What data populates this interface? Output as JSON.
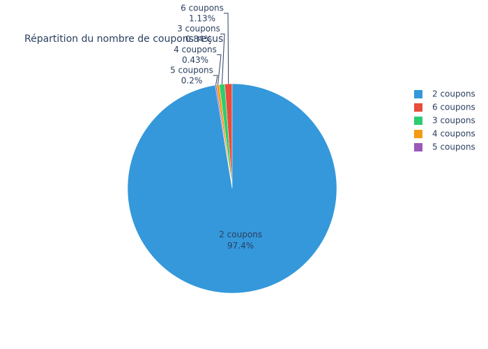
{
  "chart_data": {
    "type": "pie",
    "title": "Répartition du nombre de coupons reçus",
    "categories": [
      "2 coupons",
      "6 coupons",
      "3 coupons",
      "4 coupons",
      "5 coupons"
    ],
    "values": [
      97.4,
      1.13,
      0.84,
      0.43,
      0.2
    ],
    "value_labels": [
      "97.4%",
      "1.13%",
      "0.84%",
      "0.43%",
      "0.2%"
    ],
    "colors": [
      "#3498db",
      "#e74c3c",
      "#2ecc71",
      "#f39c12",
      "#9b59b6"
    ],
    "legend": "right"
  }
}
